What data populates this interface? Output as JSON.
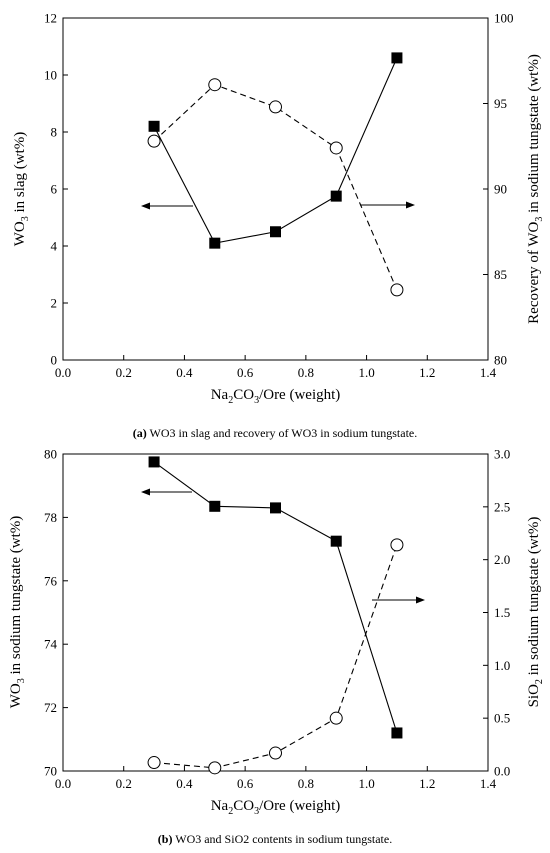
{
  "chart_data": [
    {
      "type": "line",
      "xlabel": "Na2CO3/Ore (weight)",
      "xlim": [
        0.0,
        1.4
      ],
      "xticks": [
        "0.0",
        "0.2",
        "0.4",
        "0.6",
        "0.8",
        "1.0",
        "1.2",
        "1.4"
      ],
      "ylabel_left": "WO3 in slag (wt%)",
      "ylim_left": [
        0,
        12
      ],
      "yticks_left": [
        "0",
        "2",
        "4",
        "6",
        "8",
        "10",
        "12"
      ],
      "ylabel_right": "Recovery of WO3 in sodium tungstate (wt%)",
      "ylim_right": [
        80,
        100
      ],
      "yticks_right": [
        "80",
        "85",
        "90",
        "95",
        "100"
      ],
      "x": [
        0.3,
        0.5,
        0.7,
        0.9,
        1.1
      ],
      "series": [
        {
          "axis": "left",
          "marker": "filled-square",
          "line": "solid",
          "values": [
            8.2,
            4.1,
            4.5,
            5.75,
            10.6
          ]
        },
        {
          "axis": "right",
          "marker": "open-circle",
          "line": "dashed",
          "values": [
            92.8,
            96.1,
            94.8,
            92.4,
            84.1
          ]
        }
      ],
      "caption": {
        "letter": "(a)",
        "text": " WO3 in slag and recovery of WO3 in sodium tungstate."
      }
    },
    {
      "type": "line",
      "xlabel": "Na2CO3/Ore (weight)",
      "xlim": [
        0.0,
        1.4
      ],
      "xticks": [
        "0.0",
        "0.2",
        "0.4",
        "0.6",
        "0.8",
        "1.0",
        "1.2",
        "1.4"
      ],
      "ylabel_left": "WO3 in sodium tungstate (wt%)",
      "ylim_left": [
        70,
        80
      ],
      "yticks_left": [
        "70",
        "72",
        "74",
        "76",
        "78",
        "80"
      ],
      "ylabel_right": "SiO2 in sodium tungstate (wt%)",
      "ylim_right": [
        0.0,
        3.0
      ],
      "yticks_right": [
        "0.0",
        "0.5",
        "1.0",
        "1.5",
        "2.0",
        "2.5",
        "3.0"
      ],
      "x": [
        0.3,
        0.5,
        0.7,
        0.9,
        1.1
      ],
      "series": [
        {
          "axis": "left",
          "marker": "filled-square",
          "line": "solid",
          "values": [
            79.75,
            78.35,
            78.3,
            77.25,
            71.2
          ]
        },
        {
          "axis": "right",
          "marker": "open-circle",
          "line": "dashed",
          "values": [
            0.08,
            0.03,
            0.17,
            0.5,
            2.14
          ]
        }
      ],
      "caption": {
        "letter": "(b)",
        "text": " WO3 and SiO2 contents in sodium tungstate."
      }
    }
  ]
}
